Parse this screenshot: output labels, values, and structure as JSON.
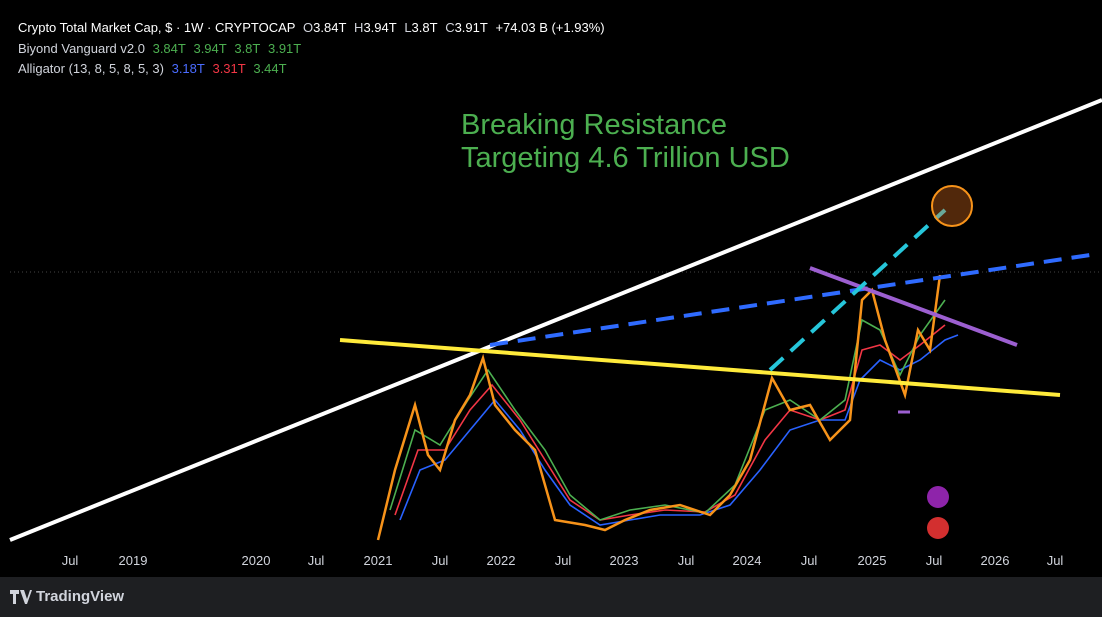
{
  "legend": {
    "symbol": "Crypto Total Market Cap, $ · 1W · CRYPTOCAP",
    "o_label": "O",
    "o": "3.84T",
    "h_label": "H",
    "h": "3.94T",
    "l_label": "L",
    "l": "3.8T",
    "c_label": "C",
    "c": "3.91T",
    "change": "+74.03 B (+1.93%)"
  },
  "indicators": [
    {
      "name": "Biyond Vanguard v2.0",
      "values": [
        "3.84T",
        "3.94T",
        "3.8T",
        "3.91T"
      ]
    },
    {
      "name": "Alligator (13, 8, 5, 8, 5, 3)",
      "values": [
        "3.18T",
        "3.31T",
        "3.44T"
      ]
    }
  ],
  "annotation": {
    "line1": "Breaking Resistance",
    "line2": "Targeting 4.6 Trillion USD"
  },
  "x_axis": [
    "Jul",
    "2019",
    "2020",
    "Jul",
    "2021",
    "Jul",
    "2022",
    "Jul",
    "2023",
    "Jul",
    "2024",
    "Jul",
    "2025",
    "Jul",
    "2026",
    "Jul"
  ],
  "footer": {
    "brand": "TradingView"
  }
}
